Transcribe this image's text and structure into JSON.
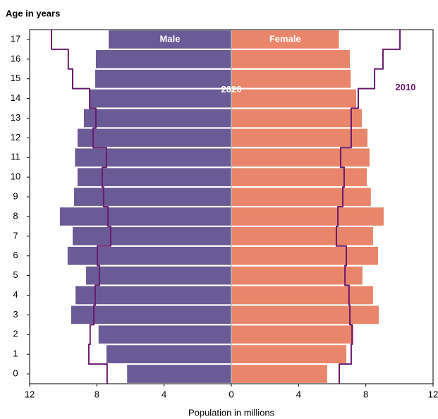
{
  "chart_data": {
    "type": "pyramid",
    "y_axis_label": "Age in years",
    "x_axis_label": "Population in millions",
    "categories": [
      "0",
      "1",
      "2",
      "3",
      "4",
      "5",
      "6",
      "7",
      "8",
      "9",
      "10",
      "11",
      "12",
      "13",
      "14",
      "15",
      "16",
      "17"
    ],
    "series": [
      {
        "name": "Male",
        "color": "#6a5a96",
        "values": [
          6.2,
          7.43,
          7.9,
          9.53,
          9.27,
          8.64,
          9.74,
          9.44,
          10.2,
          9.36,
          9.15,
          9.3,
          9.15,
          8.77,
          8.43,
          8.1,
          8.06,
          7.3
        ]
      },
      {
        "name": "Female",
        "color": "#e8856a",
        "values": [
          5.7,
          6.84,
          7.26,
          8.77,
          8.43,
          7.8,
          8.73,
          8.43,
          9.06,
          8.3,
          8.06,
          8.22,
          8.1,
          7.76,
          7.43,
          7.1,
          7.05,
          6.4
        ]
      }
    ],
    "bar_label": "2020",
    "line": {
      "name": "2010",
      "color": "#6a1a6e",
      "male": [
        7.39,
        8.48,
        8.4,
        8.18,
        8.1,
        7.85,
        7.97,
        7.18,
        7.34,
        7.6,
        7.68,
        7.43,
        8.22,
        8.06,
        8.43,
        9.44,
        9.7,
        10.7
      ],
      "female": [
        6.42,
        7.13,
        7.18,
        7.05,
        7.0,
        6.76,
        6.84,
        6.25,
        6.34,
        6.63,
        6.71,
        6.5,
        7.13,
        7.13,
        7.55,
        8.52,
        9.02,
        10.03
      ]
    },
    "xlim": [
      -12,
      12
    ],
    "xticks": [
      {
        "value": -12,
        "label": "12"
      },
      {
        "value": -8,
        "label": "8"
      },
      {
        "value": -4,
        "label": "4"
      },
      0,
      4,
      8,
      12
    ]
  }
}
